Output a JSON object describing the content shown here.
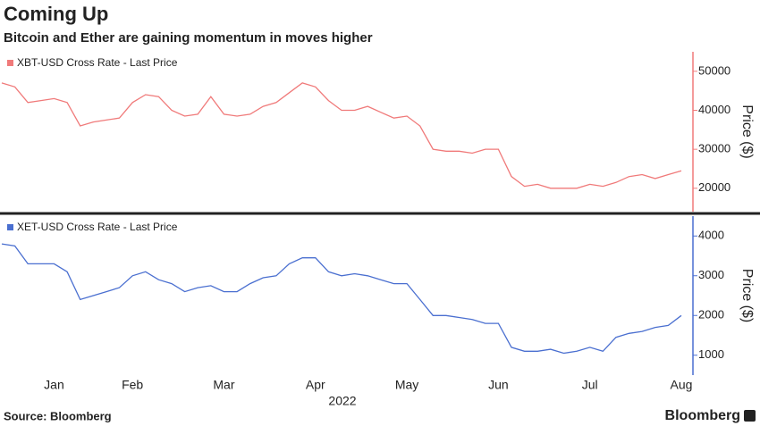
{
  "header": {
    "title": "Coming Up",
    "subtitle": "Bitcoin and Ether are gaining momentum in moves higher"
  },
  "chart_data": [
    {
      "type": "line",
      "legend": "upper left",
      "series": [
        {
          "name": "XBT-USD Cross Rate - Last Price",
          "color": "#f07a7a",
          "values": [
            47000,
            46000,
            42000,
            42500,
            43000,
            42000,
            36000,
            37000,
            37500,
            38000,
            42000,
            44000,
            43500,
            40000,
            38500,
            39000,
            43500,
            39000,
            38500,
            39000,
            41000,
            42000,
            44500,
            47000,
            46000,
            42500,
            40000,
            40000,
            41000,
            39500,
            38000,
            38500,
            36000,
            30000,
            29500,
            29500,
            29000,
            30000,
            30000,
            23000,
            20500,
            21000,
            20000,
            20000,
            20000,
            21000,
            20500,
            21500,
            23000,
            23500,
            22500,
            23500,
            24500
          ]
        }
      ],
      "ylim": [
        14000,
        55000
      ],
      "yticks": [
        20000,
        30000,
        40000,
        50000
      ],
      "ylabel": "Price ($)"
    },
    {
      "type": "line",
      "legend": "upper left",
      "categories": [
        null,
        null,
        null,
        null,
        "Jan",
        null,
        null,
        null,
        null,
        null,
        "Feb",
        null,
        null,
        null,
        null,
        null,
        null,
        "Mar",
        null,
        null,
        null,
        null,
        null,
        null,
        "Apr",
        null,
        null,
        null,
        null,
        null,
        null,
        "May",
        null,
        null,
        null,
        null,
        null,
        null,
        "Jun",
        null,
        null,
        null,
        null,
        null,
        null,
        "Jul",
        null,
        null,
        null,
        null,
        null,
        null,
        "Aug"
      ],
      "series": [
        {
          "name": "XET-USD Cross Rate - Last Price",
          "color": "#4a6fd0",
          "values": [
            3800,
            3750,
            3300,
            3300,
            3300,
            3100,
            2400,
            2500,
            2600,
            2700,
            3000,
            3100,
            2900,
            2800,
            2600,
            2700,
            2750,
            2600,
            2600,
            2800,
            2950,
            3000,
            3300,
            3450,
            3450,
            3100,
            3000,
            3050,
            3000,
            2900,
            2800,
            2800,
            2400,
            2000,
            2000,
            1950,
            1900,
            1800,
            1800,
            1200,
            1100,
            1100,
            1150,
            1050,
            1100,
            1200,
            1100,
            1450,
            1550,
            1600,
            1700,
            1750,
            2000
          ]
        }
      ],
      "ylim": [
        500,
        4500
      ],
      "yticks": [
        1000,
        2000,
        3000,
        4000
      ],
      "ylabel": "Price ($)",
      "xlabel": "2022"
    }
  ],
  "footer": {
    "source": "Source: Bloomberg",
    "brand": "Bloomberg"
  }
}
